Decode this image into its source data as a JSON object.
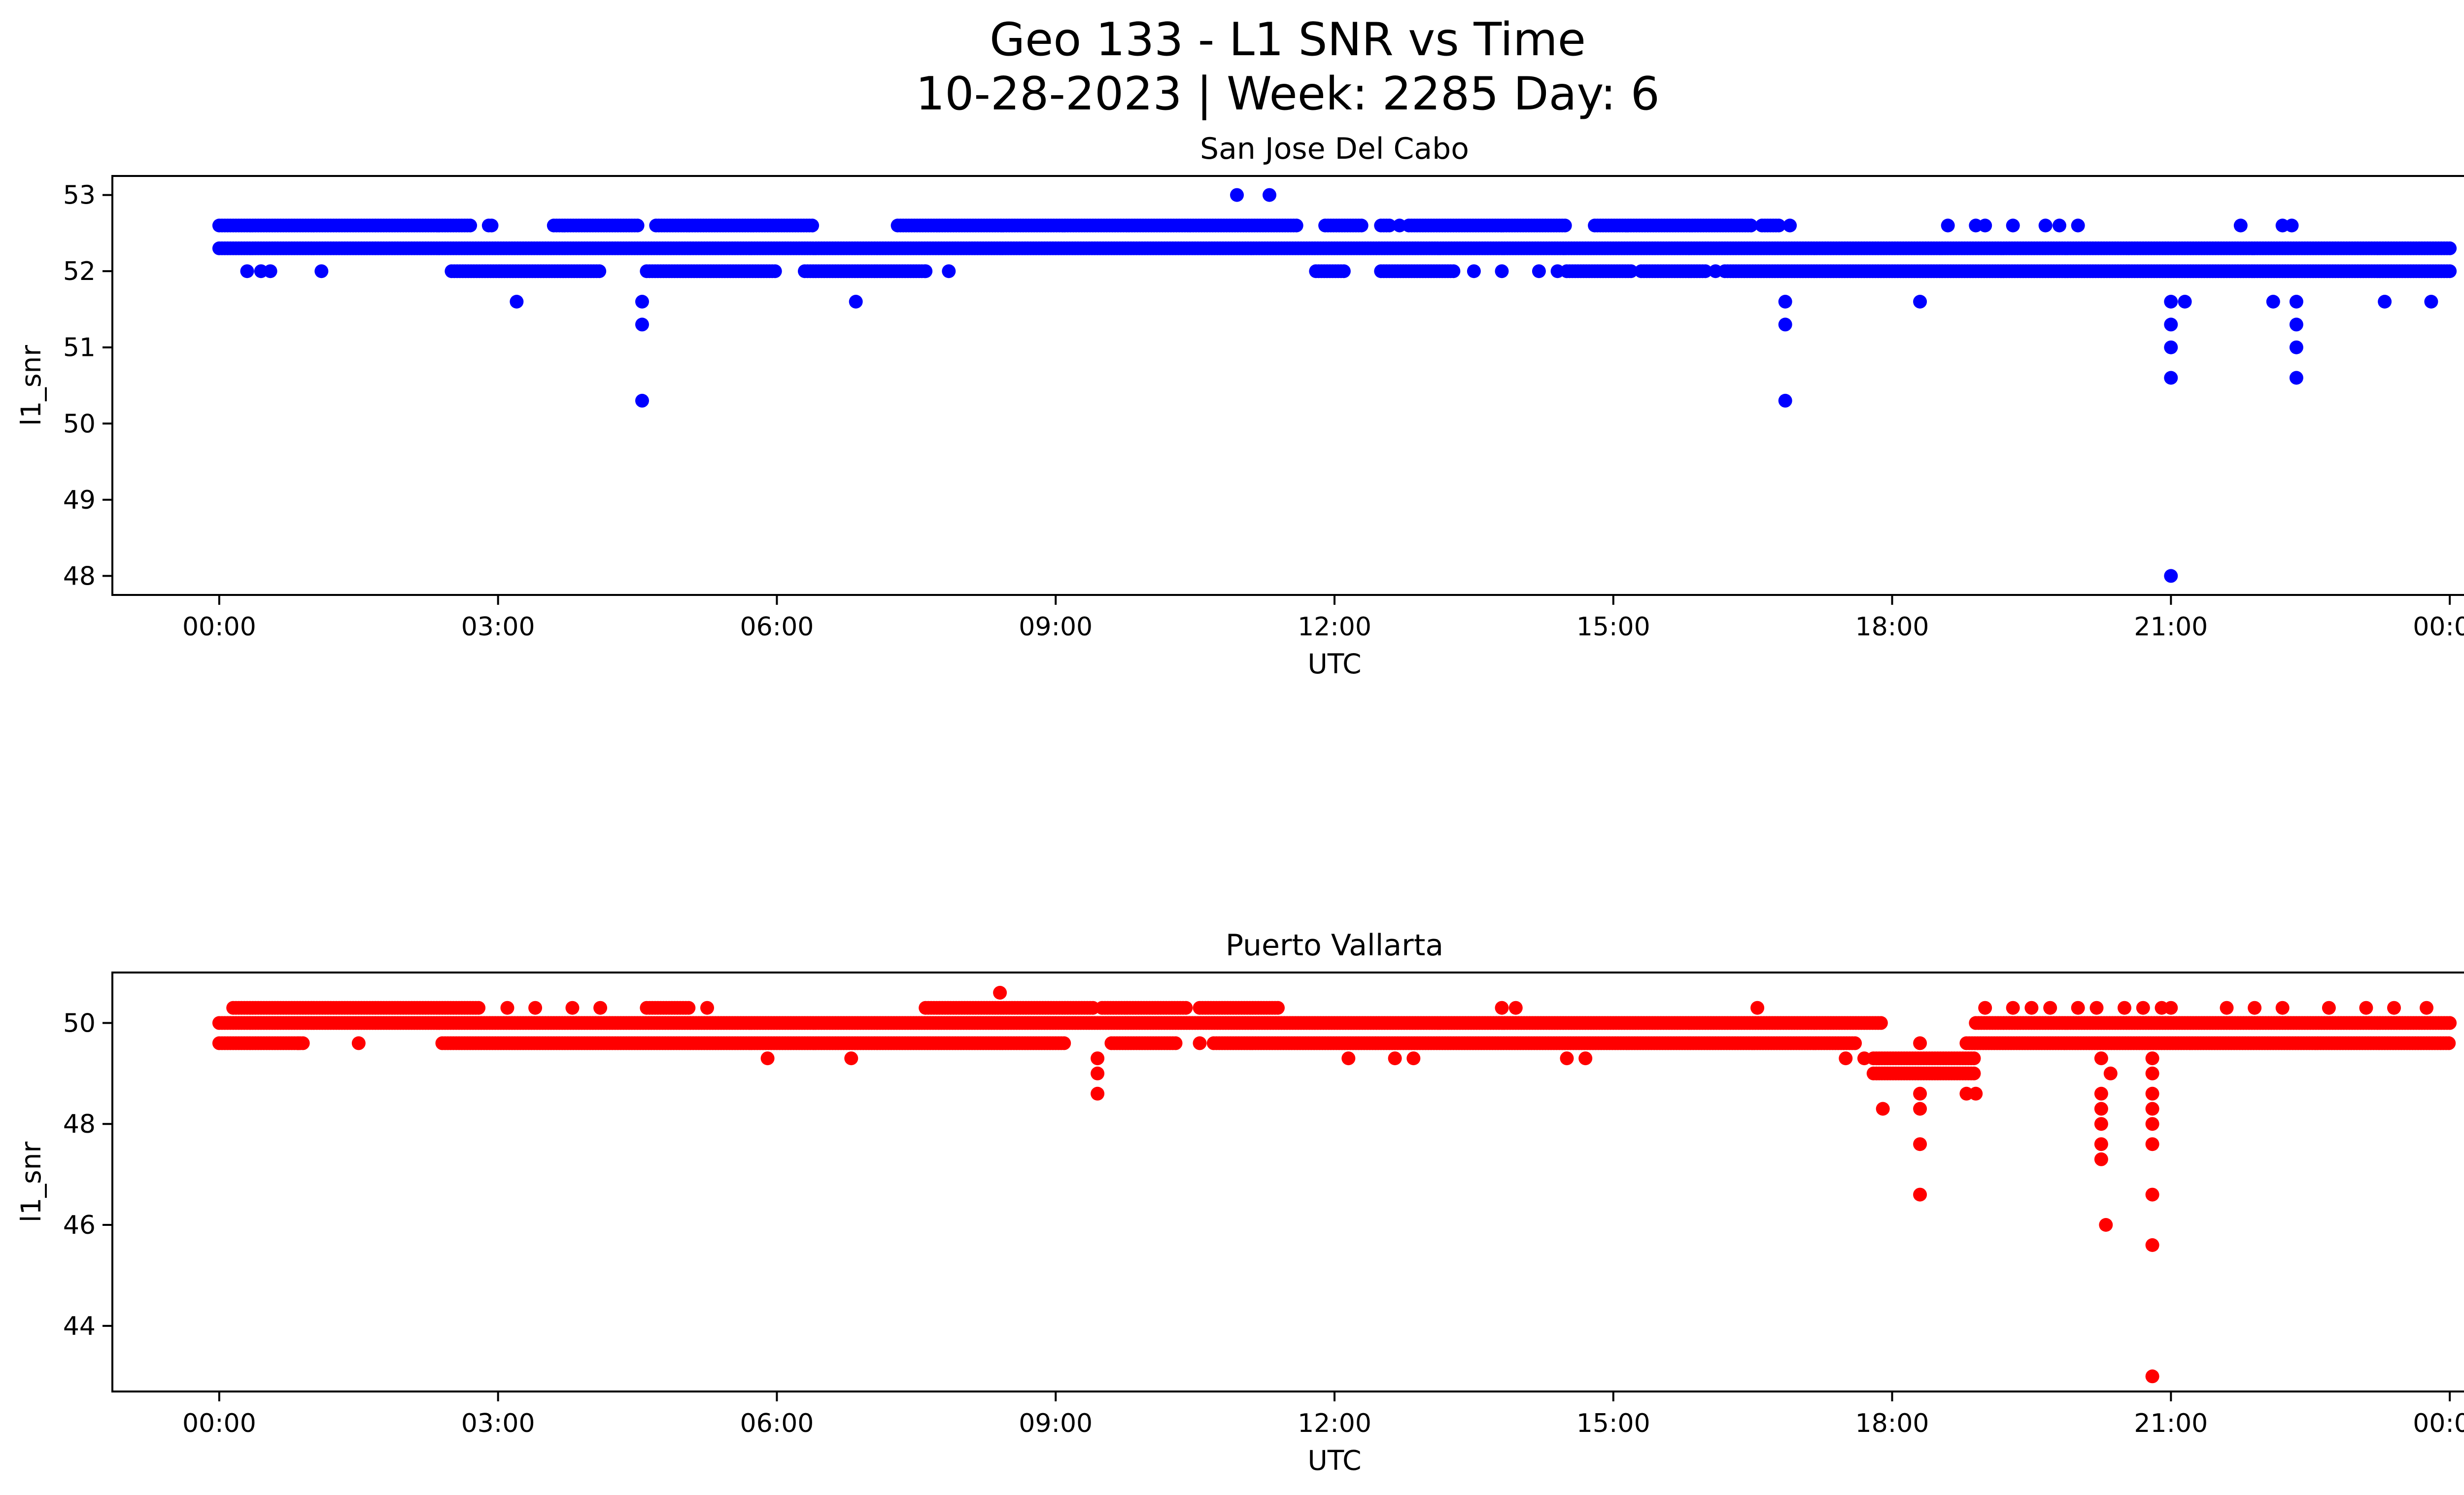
{
  "figure": {
    "title_line1": "Geo 133 - L1 SNR vs Time",
    "title_line2": "10-28-2023 | Week: 2285 Day: 6"
  },
  "chart_data": [
    {
      "type": "scatter",
      "title": "San Jose Del Cabo",
      "xlabel": "UTC",
      "ylabel": "l1_snr",
      "color": "#0000ff",
      "x_unit": "hours UTC",
      "xlim": [
        -1.15,
        25.15
      ],
      "ylim": [
        47.75,
        53.25
      ],
      "xticks": [
        0,
        3,
        6,
        9,
        12,
        15,
        18,
        21,
        24
      ],
      "xtick_labels": [
        "00:00",
        "03:00",
        "06:00",
        "09:00",
        "12:00",
        "15:00",
        "18:00",
        "21:00",
        "00:00"
      ],
      "yticks": [
        48,
        49,
        50,
        51,
        52,
        53
      ],
      "ytick_labels": [
        "48",
        "49",
        "50",
        "51",
        "52",
        "53"
      ],
      "bands": [
        {
          "y": 52.3,
          "segments": [
            [
              0,
              24
            ]
          ]
        },
        {
          "y": 52.6,
          "segments": [
            [
              0,
              2.7
            ],
            [
              2.9,
              2.95
            ],
            [
              3.6,
              4.5
            ],
            [
              4.7,
              6.4
            ],
            [
              7.3,
              11.6
            ],
            [
              11.9,
              12.3
            ],
            [
              12.5,
              12.6
            ],
            [
              12.8,
              14.5
            ],
            [
              14.8,
              16.5
            ],
            [
              16.6,
              16.8
            ]
          ]
        },
        {
          "y": 52.0,
          "segments": [
            [
              2.5,
              4.1
            ],
            [
              4.6,
              6.0
            ],
            [
              6.3,
              7.6
            ],
            [
              11.8,
              12.1
            ],
            [
              12.5,
              13.3
            ],
            [
              14.5,
              15.2
            ],
            [
              15.3,
              16.0
            ],
            [
              16.2,
              24
            ]
          ]
        }
      ],
      "points": [
        {
          "x": 0.3,
          "y": 52.0
        },
        {
          "x": 0.45,
          "y": 52.0
        },
        {
          "x": 0.55,
          "y": 52.0
        },
        {
          "x": 1.1,
          "y": 52.0
        },
        {
          "x": 3.2,
          "y": 51.6
        },
        {
          "x": 4.55,
          "y": 51.6
        },
        {
          "x": 4.55,
          "y": 51.3
        },
        {
          "x": 4.55,
          "y": 50.3
        },
        {
          "x": 6.85,
          "y": 51.6
        },
        {
          "x": 7.6,
          "y": 52.0
        },
        {
          "x": 7.85,
          "y": 52.0
        },
        {
          "x": 10.95,
          "y": 53.0
        },
        {
          "x": 11.3,
          "y": 53.0
        },
        {
          "x": 12.7,
          "y": 52.6
        },
        {
          "x": 13.5,
          "y": 52.0
        },
        {
          "x": 13.8,
          "y": 52.0
        },
        {
          "x": 14.2,
          "y": 52.0
        },
        {
          "x": 14.4,
          "y": 52.0
        },
        {
          "x": 16.1,
          "y": 52.0
        },
        {
          "x": 16.9,
          "y": 52.6
        },
        {
          "x": 16.85,
          "y": 51.6
        },
        {
          "x": 16.85,
          "y": 51.3
        },
        {
          "x": 16.85,
          "y": 50.3
        },
        {
          "x": 18.3,
          "y": 51.6
        },
        {
          "x": 18.6,
          "y": 52.6
        },
        {
          "x": 18.9,
          "y": 52.6
        },
        {
          "x": 19.0,
          "y": 52.6
        },
        {
          "x": 19.3,
          "y": 52.6
        },
        {
          "x": 19.65,
          "y": 52.6
        },
        {
          "x": 19.8,
          "y": 52.6
        },
        {
          "x": 20.0,
          "y": 52.6
        },
        {
          "x": 21.0,
          "y": 51.6
        },
        {
          "x": 21.0,
          "y": 51.3
        },
        {
          "x": 21.0,
          "y": 51.0
        },
        {
          "x": 21.0,
          "y": 50.6
        },
        {
          "x": 21.0,
          "y": 48.0
        },
        {
          "x": 21.15,
          "y": 51.6
        },
        {
          "x": 21.75,
          "y": 52.6
        },
        {
          "x": 22.1,
          "y": 51.6
        },
        {
          "x": 22.2,
          "y": 52.6
        },
        {
          "x": 22.3,
          "y": 52.6
        },
        {
          "x": 22.35,
          "y": 51.6
        },
        {
          "x": 22.35,
          "y": 51.3
        },
        {
          "x": 22.35,
          "y": 51.0
        },
        {
          "x": 22.35,
          "y": 50.6
        },
        {
          "x": 23.3,
          "y": 51.6
        },
        {
          "x": 23.8,
          "y": 51.6
        }
      ]
    },
    {
      "type": "scatter",
      "title": "Puerto Vallarta",
      "xlabel": "UTC",
      "ylabel": "l1_snr",
      "color": "#ff0000",
      "x_unit": "hours UTC",
      "xlim": [
        -1.15,
        25.15
      ],
      "ylim": [
        42.7,
        51.0
      ],
      "xticks": [
        0,
        3,
        6,
        9,
        12,
        15,
        18,
        21,
        24
      ],
      "xtick_labels": [
        "00:00",
        "03:00",
        "06:00",
        "09:00",
        "12:00",
        "15:00",
        "18:00",
        "21:00",
        "00:00"
      ],
      "yticks": [
        44,
        46,
        48,
        50
      ],
      "ytick_labels": [
        "44",
        "46",
        "48",
        "50"
      ],
      "bands": [
        {
          "y": 50.0,
          "segments": [
            [
              0,
              17.9
            ],
            [
              18.9,
              24
            ]
          ]
        },
        {
          "y": 49.6,
          "segments": [
            [
              0,
              0.9
            ],
            [
              2.4,
              9.1
            ],
            [
              9.6,
              10.3
            ],
            [
              10.7,
              17.6
            ],
            [
              18.8,
              24
            ]
          ]
        },
        {
          "y": 50.3,
          "segments": [
            [
              0.15,
              2.8
            ],
            [
              4.6,
              5.05
            ],
            [
              7.6,
              9.4
            ],
            [
              9.5,
              10.4
            ],
            [
              10.55,
              11.4
            ]
          ]
        },
        {
          "y": 49.3,
          "segments": [
            [
              17.8,
              18.9
            ]
          ]
        },
        {
          "y": 49.0,
          "segments": [
            [
              17.8,
              18.9
            ]
          ]
        }
      ],
      "points": [
        {
          "x": 0.85,
          "y": 49.6
        },
        {
          "x": 1.5,
          "y": 49.6
        },
        {
          "x": 3.1,
          "y": 50.3
        },
        {
          "x": 3.4,
          "y": 50.3
        },
        {
          "x": 3.8,
          "y": 50.3
        },
        {
          "x": 4.1,
          "y": 50.3
        },
        {
          "x": 5.25,
          "y": 50.3
        },
        {
          "x": 5.9,
          "y": 49.3
        },
        {
          "x": 6.8,
          "y": 49.3
        },
        {
          "x": 8.4,
          "y": 50.6
        },
        {
          "x": 9.45,
          "y": 49.3
        },
        {
          "x": 9.45,
          "y": 49.0
        },
        {
          "x": 9.45,
          "y": 48.6
        },
        {
          "x": 10.55,
          "y": 49.6
        },
        {
          "x": 12.15,
          "y": 49.3
        },
        {
          "x": 12.65,
          "y": 49.3
        },
        {
          "x": 12.85,
          "y": 49.3
        },
        {
          "x": 13.8,
          "y": 50.3
        },
        {
          "x": 13.95,
          "y": 50.3
        },
        {
          "x": 14.5,
          "y": 49.3
        },
        {
          "x": 14.7,
          "y": 49.3
        },
        {
          "x": 16.55,
          "y": 50.3
        },
        {
          "x": 17.5,
          "y": 49.3
        },
        {
          "x": 17.7,
          "y": 49.3
        },
        {
          "x": 17.9,
          "y": 48.3
        },
        {
          "x": 18.3,
          "y": 49.6
        },
        {
          "x": 18.3,
          "y": 48.6
        },
        {
          "x": 18.3,
          "y": 48.3
        },
        {
          "x": 18.3,
          "y": 47.6
        },
        {
          "x": 18.3,
          "y": 46.6
        },
        {
          "x": 18.8,
          "y": 48.6
        },
        {
          "x": 18.9,
          "y": 48.6
        },
        {
          "x": 19.0,
          "y": 50.3
        },
        {
          "x": 19.3,
          "y": 50.3
        },
        {
          "x": 19.5,
          "y": 50.3
        },
        {
          "x": 19.7,
          "y": 50.3
        },
        {
          "x": 20.0,
          "y": 50.3
        },
        {
          "x": 20.2,
          "y": 50.3
        },
        {
          "x": 20.25,
          "y": 49.3
        },
        {
          "x": 20.25,
          "y": 48.6
        },
        {
          "x": 20.25,
          "y": 48.3
        },
        {
          "x": 20.25,
          "y": 48.0
        },
        {
          "x": 20.25,
          "y": 47.6
        },
        {
          "x": 20.25,
          "y": 47.3
        },
        {
          "x": 20.3,
          "y": 46.0
        },
        {
          "x": 20.35,
          "y": 49.0
        },
        {
          "x": 20.5,
          "y": 50.3
        },
        {
          "x": 20.7,
          "y": 50.3
        },
        {
          "x": 20.8,
          "y": 49.3
        },
        {
          "x": 20.8,
          "y": 49.0
        },
        {
          "x": 20.8,
          "y": 48.6
        },
        {
          "x": 20.8,
          "y": 48.3
        },
        {
          "x": 20.8,
          "y": 48.0
        },
        {
          "x": 20.8,
          "y": 47.6
        },
        {
          "x": 20.8,
          "y": 46.6
        },
        {
          "x": 20.8,
          "y": 45.6
        },
        {
          "x": 20.8,
          "y": 43.0
        },
        {
          "x": 20.9,
          "y": 50.3
        },
        {
          "x": 21.0,
          "y": 50.3
        },
        {
          "x": 21.6,
          "y": 50.3
        },
        {
          "x": 21.9,
          "y": 50.3
        },
        {
          "x": 22.2,
          "y": 50.3
        },
        {
          "x": 22.7,
          "y": 50.3
        },
        {
          "x": 23.1,
          "y": 50.3
        },
        {
          "x": 23.4,
          "y": 50.3
        },
        {
          "x": 23.75,
          "y": 50.3
        }
      ]
    }
  ]
}
